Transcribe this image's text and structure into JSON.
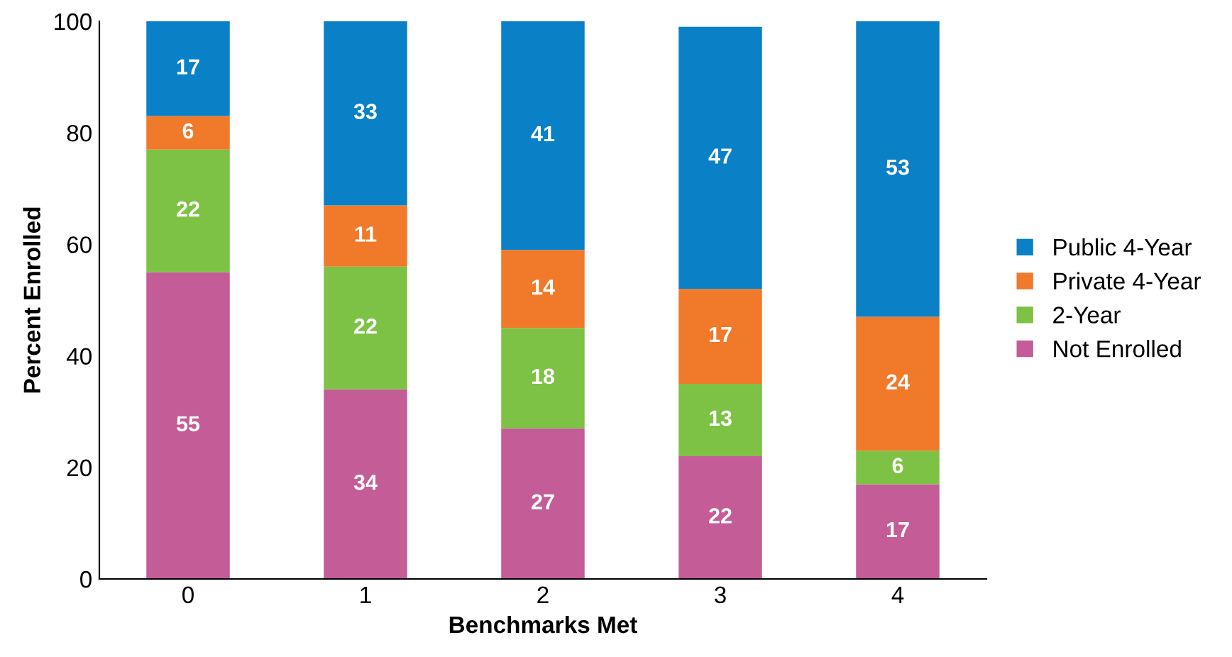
{
  "chart_data": {
    "type": "bar",
    "stacked": true,
    "xlabel": "Benchmarks Met",
    "ylabel": "Percent Enrolled",
    "categories": [
      "0",
      "1",
      "2",
      "3",
      "4"
    ],
    "series": [
      {
        "name": "Not Enrolled",
        "color": "#c45c98",
        "values": [
          55,
          34,
          27,
          22,
          17
        ]
      },
      {
        "name": "2-Year",
        "color": "#7dc244",
        "values": [
          22,
          22,
          18,
          13,
          6
        ]
      },
      {
        "name": "Private 4-Year",
        "color": "#f1792a",
        "values": [
          6,
          11,
          14,
          17,
          24
        ]
      },
      {
        "name": "Public 4-Year",
        "color": "#0a80c6",
        "values": [
          17,
          33,
          41,
          47,
          53
        ]
      }
    ],
    "ylim": [
      0,
      100
    ],
    "yticks": [
      0,
      20,
      40,
      60,
      80,
      100
    ],
    "grid": false,
    "legend": "right",
    "data_labels": true
  }
}
